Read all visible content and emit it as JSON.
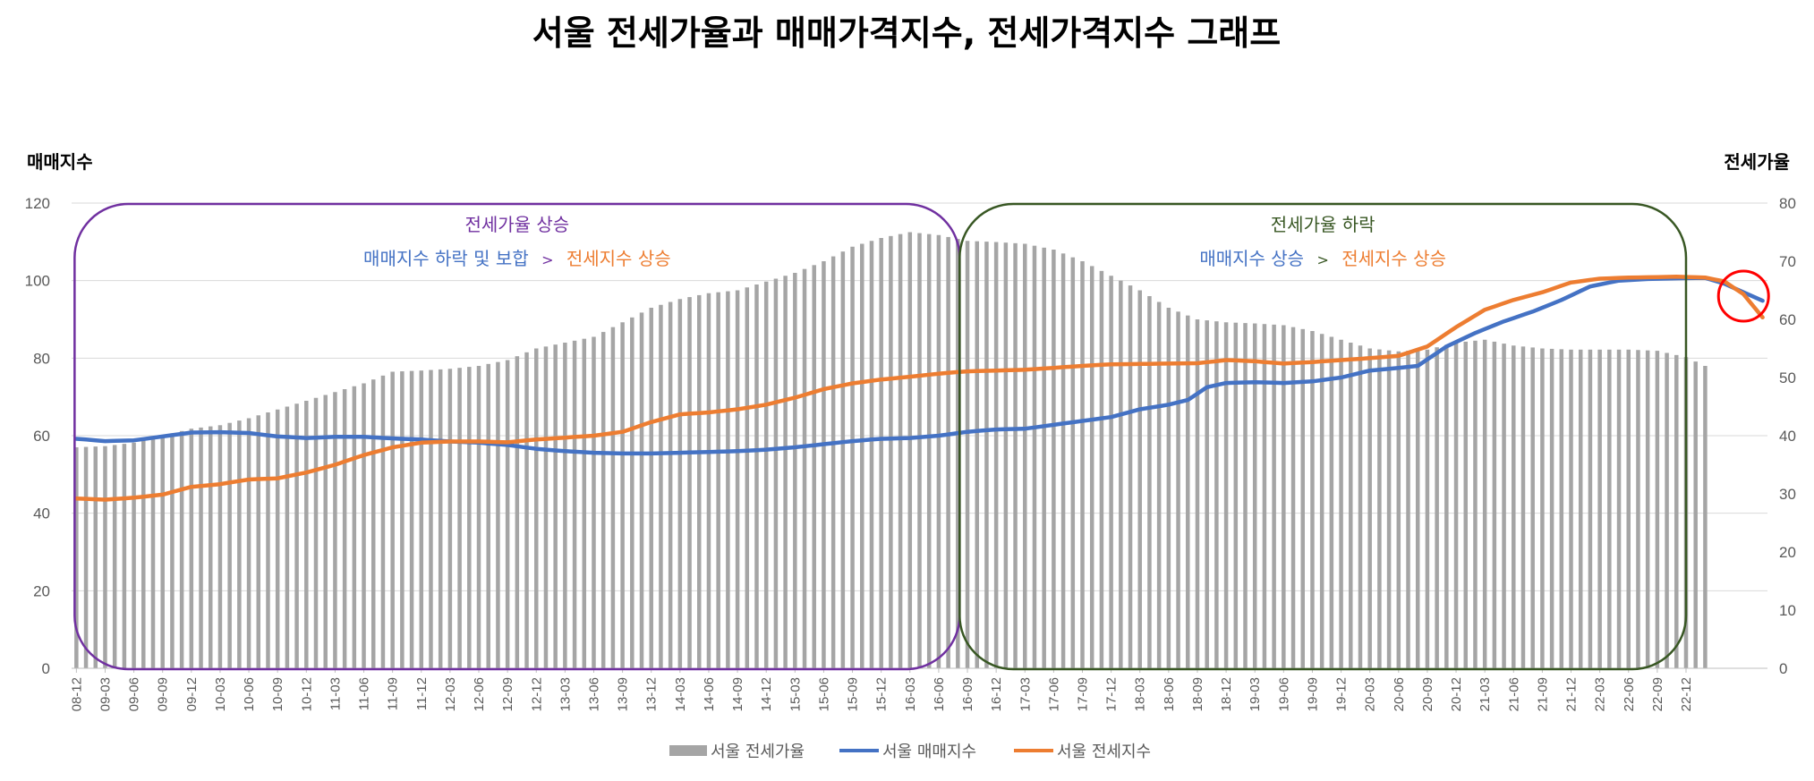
{
  "chart_data": {
    "type": "bar+line",
    "title": "서울 전세가율과 매매가격지수, 전세가격지수 그래프",
    "ylabel_left": "매매지수",
    "ylabel_right": "전세가율",
    "ylim_left": [
      0,
      120
    ],
    "ylim_right": [
      0,
      80
    ],
    "yticks_left": [
      "0",
      "20",
      "40",
      "60",
      "80",
      "100",
      "120"
    ],
    "yticks_right": [
      "0",
      "10",
      "20",
      "30",
      "40",
      "50",
      "60",
      "70",
      "80"
    ],
    "x_tick_labels": [
      "08-12",
      "09-03",
      "09-06",
      "09-09",
      "09-12",
      "10-03",
      "10-06",
      "10-09",
      "10-12",
      "11-03",
      "11-06",
      "11-09",
      "11-12",
      "12-03",
      "12-06",
      "12-09",
      "12-12",
      "13-03",
      "13-06",
      "13-09",
      "13-12",
      "14-03",
      "14-06",
      "14-09",
      "14-12",
      "15-03",
      "15-06",
      "15-09",
      "15-12",
      "16-03",
      "16-06",
      "16-09",
      "16-12",
      "17-03",
      "17-06",
      "17-09",
      "17-12",
      "18-03",
      "18-06",
      "18-09",
      "18-12",
      "19-03",
      "19-06",
      "19-09",
      "19-12",
      "20-03",
      "20-06",
      "20-09",
      "20-12",
      "21-03",
      "21-06",
      "21-09",
      "21-12",
      "22-03",
      "22-06",
      "22-09",
      "22-12"
    ],
    "series": [
      {
        "name": "서울 전세가율",
        "kind": "bar",
        "axis": "right",
        "color": "#a5a5a5",
        "anchors": [
          [
            0,
            38.0
          ],
          [
            3,
            38.2
          ],
          [
            6,
            38.8
          ],
          [
            9,
            40.0
          ],
          [
            12,
            41.2
          ],
          [
            15,
            41.8
          ],
          [
            18,
            43.0
          ],
          [
            21,
            44.5
          ],
          [
            24,
            46.0
          ],
          [
            27,
            47.5
          ],
          [
            30,
            49.0
          ],
          [
            33,
            51.0
          ],
          [
            36,
            51.2
          ],
          [
            39,
            51.5
          ],
          [
            42,
            52.0
          ],
          [
            45,
            53.0
          ],
          [
            48,
            55.0
          ],
          [
            51,
            56.0
          ],
          [
            54,
            57.0
          ],
          [
            57,
            59.5
          ],
          [
            60,
            62.0
          ],
          [
            63,
            63.5
          ],
          [
            66,
            64.5
          ],
          [
            69,
            65.0
          ],
          [
            72,
            66.5
          ],
          [
            75,
            68.0
          ],
          [
            78,
            70.0
          ],
          [
            81,
            72.5
          ],
          [
            84,
            74.0
          ],
          [
            87,
            75.0
          ],
          [
            90,
            74.5
          ],
          [
            93,
            73.5
          ],
          [
            96,
            73.3
          ],
          [
            99,
            73.0
          ],
          [
            102,
            72.0
          ],
          [
            105,
            70.0
          ],
          [
            108,
            67.5
          ],
          [
            111,
            65.0
          ],
          [
            114,
            62.0
          ],
          [
            117,
            60.0
          ],
          [
            120,
            59.5
          ],
          [
            123,
            59.3
          ],
          [
            126,
            59.0
          ],
          [
            129,
            58.0
          ],
          [
            132,
            56.5
          ],
          [
            135,
            55.0
          ],
          [
            138,
            54.5
          ],
          [
            141,
            54.8
          ],
          [
            144,
            56.0
          ],
          [
            147,
            56.5
          ],
          [
            150,
            55.5
          ],
          [
            153,
            55.0
          ],
          [
            156,
            54.8
          ],
          [
            159,
            54.8
          ],
          [
            162,
            54.8
          ],
          [
            165,
            54.6
          ],
          [
            168,
            53.5
          ],
          [
            170,
            52.0
          ]
        ]
      },
      {
        "name": "서울 매매지수",
        "kind": "line",
        "axis": "left",
        "color": "#4472c4",
        "anchors": [
          [
            0,
            59.2
          ],
          [
            3,
            58.6
          ],
          [
            6,
            58.8
          ],
          [
            9,
            59.8
          ],
          [
            12,
            60.8
          ],
          [
            15,
            60.9
          ],
          [
            18,
            60.7
          ],
          [
            21,
            59.8
          ],
          [
            24,
            59.4
          ],
          [
            27,
            59.7
          ],
          [
            30,
            59.7
          ],
          [
            33,
            59.3
          ],
          [
            36,
            59.0
          ],
          [
            39,
            58.5
          ],
          [
            42,
            58.2
          ],
          [
            45,
            57.6
          ],
          [
            48,
            56.6
          ],
          [
            51,
            56.0
          ],
          [
            54,
            55.6
          ],
          [
            57,
            55.4
          ],
          [
            60,
            55.4
          ],
          [
            63,
            55.6
          ],
          [
            66,
            55.8
          ],
          [
            69,
            56.0
          ],
          [
            72,
            56.4
          ],
          [
            75,
            57.0
          ],
          [
            78,
            57.8
          ],
          [
            81,
            58.6
          ],
          [
            84,
            59.2
          ],
          [
            87,
            59.4
          ],
          [
            90,
            60.0
          ],
          [
            93,
            61.0
          ],
          [
            96,
            61.6
          ],
          [
            99,
            61.8
          ],
          [
            102,
            62.8
          ],
          [
            105,
            63.8
          ],
          [
            108,
            64.8
          ],
          [
            111,
            66.8
          ],
          [
            114,
            68.0
          ],
          [
            116,
            69.2
          ],
          [
            118,
            72.5
          ],
          [
            120,
            73.6
          ],
          [
            123,
            73.8
          ],
          [
            126,
            73.6
          ],
          [
            129,
            74.0
          ],
          [
            132,
            75.0
          ],
          [
            135,
            76.8
          ],
          [
            138,
            77.5
          ],
          [
            140,
            78.0
          ],
          [
            143,
            83.0
          ],
          [
            146,
            86.5
          ],
          [
            149,
            89.5
          ],
          [
            152,
            92.0
          ],
          [
            155,
            95.0
          ],
          [
            158,
            98.5
          ],
          [
            161,
            100.0
          ],
          [
            164,
            100.4
          ],
          [
            167,
            100.6
          ],
          [
            170,
            100.7
          ],
          [
            172,
            99.2
          ],
          [
            174,
            97.0
          ],
          [
            176,
            94.8
          ]
        ]
      },
      {
        "name": "서울 전세지수",
        "kind": "line",
        "axis": "left",
        "color": "#ed7d31",
        "anchors": [
          [
            0,
            43.8
          ],
          [
            3,
            43.5
          ],
          [
            6,
            44.0
          ],
          [
            9,
            44.8
          ],
          [
            12,
            46.8
          ],
          [
            15,
            47.5
          ],
          [
            18,
            48.7
          ],
          [
            21,
            49.0
          ],
          [
            24,
            50.5
          ],
          [
            27,
            52.5
          ],
          [
            30,
            55.0
          ],
          [
            33,
            57.0
          ],
          [
            36,
            58.2
          ],
          [
            39,
            58.5
          ],
          [
            42,
            58.5
          ],
          [
            45,
            58.3
          ],
          [
            48,
            59.0
          ],
          [
            51,
            59.5
          ],
          [
            54,
            60.0
          ],
          [
            57,
            61.0
          ],
          [
            60,
            63.5
          ],
          [
            63,
            65.5
          ],
          [
            66,
            66.0
          ],
          [
            69,
            66.8
          ],
          [
            72,
            68.0
          ],
          [
            75,
            69.8
          ],
          [
            78,
            72.0
          ],
          [
            81,
            73.5
          ],
          [
            84,
            74.5
          ],
          [
            87,
            75.2
          ],
          [
            90,
            76.0
          ],
          [
            93,
            76.6
          ],
          [
            96,
            76.8
          ],
          [
            99,
            77.0
          ],
          [
            102,
            77.5
          ],
          [
            105,
            78.0
          ],
          [
            108,
            78.4
          ],
          [
            111,
            78.5
          ],
          [
            114,
            78.6
          ],
          [
            117,
            78.7
          ],
          [
            120,
            79.5
          ],
          [
            123,
            79.2
          ],
          [
            126,
            78.6
          ],
          [
            129,
            79.0
          ],
          [
            132,
            79.5
          ],
          [
            135,
            80.0
          ],
          [
            138,
            80.6
          ],
          [
            141,
            83.0
          ],
          [
            144,
            88.0
          ],
          [
            147,
            92.5
          ],
          [
            150,
            95.0
          ],
          [
            153,
            97.0
          ],
          [
            156,
            99.5
          ],
          [
            159,
            100.5
          ],
          [
            162,
            100.8
          ],
          [
            165,
            100.9
          ],
          [
            167,
            101.0
          ],
          [
            170,
            100.8
          ],
          [
            172,
            99.8
          ],
          [
            174,
            96.5
          ],
          [
            176,
            90.5
          ]
        ]
      }
    ],
    "annotations": {
      "left_box": {
        "line1": "전세가율 상승",
        "line2_part1": "매매지수 하락 및 보합",
        "separator": ">",
        "line2_part2": "전세지수 상승",
        "border_color": "#7030a0",
        "text_color_line1": "#7030a0"
      },
      "right_box": {
        "line1": "전세가율 하락",
        "line2_part1": "매매지수 상승",
        "separator": ">",
        "line2_part2": "전세지수 상승",
        "border_color": "#385723",
        "text_color_line1": "#385723"
      },
      "highlight_circle_color": "#ff0000"
    },
    "legend": {
      "position": "bottom",
      "items": [
        "서울 전세가율",
        "서울 매매지수",
        "서울 전세지수"
      ]
    }
  }
}
